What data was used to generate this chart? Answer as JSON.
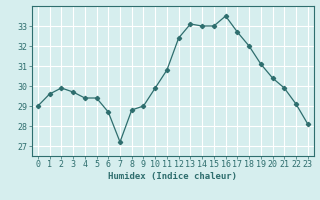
{
  "x": [
    0,
    1,
    2,
    3,
    4,
    5,
    6,
    7,
    8,
    9,
    10,
    11,
    12,
    13,
    14,
    15,
    16,
    17,
    18,
    19,
    20,
    21,
    22,
    23
  ],
  "y": [
    29.0,
    29.6,
    29.9,
    29.7,
    29.4,
    29.4,
    28.7,
    27.2,
    28.8,
    29.0,
    29.9,
    30.8,
    32.4,
    33.1,
    33.0,
    33.0,
    33.5,
    32.7,
    32.0,
    31.1,
    30.4,
    29.9,
    29.1,
    28.1
  ],
  "line_color": "#2e6e6e",
  "marker": "D",
  "marker_size": 2.2,
  "bg_color": "#d6eeee",
  "grid_color": "#ffffff",
  "axis_color": "#2e6e6e",
  "xlabel": "Humidex (Indice chaleur)",
  "ylim": [
    26.5,
    34.0
  ],
  "xlim": [
    -0.5,
    23.5
  ],
  "yticks": [
    27,
    28,
    29,
    30,
    31,
    32,
    33
  ],
  "xticks": [
    0,
    1,
    2,
    3,
    4,
    5,
    6,
    7,
    8,
    9,
    10,
    11,
    12,
    13,
    14,
    15,
    16,
    17,
    18,
    19,
    20,
    21,
    22,
    23
  ],
  "label_fontsize": 6.5,
  "tick_fontsize": 6.0
}
